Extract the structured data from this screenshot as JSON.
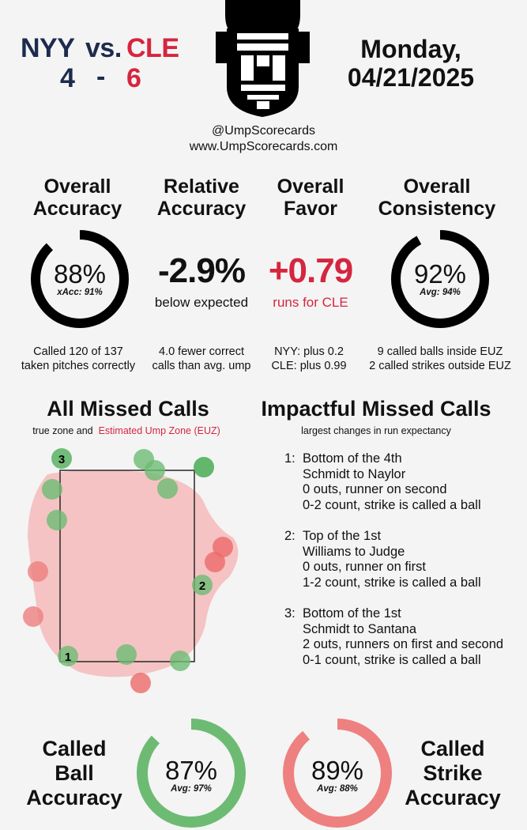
{
  "header": {
    "away_team": "NYY",
    "vs": "vs.",
    "home_team": "CLE",
    "away_score": "4",
    "dash": "-",
    "home_score": "6",
    "day": "Monday,",
    "date": "04/21/2025",
    "handle": "@UmpScorecards",
    "website": "www.UmpScorecards.com",
    "mask_icon": "umpire-mask-icon"
  },
  "metrics": [
    {
      "title_1": "Overall",
      "title_2": "Accuracy",
      "value": "88%",
      "sub": "xAcc: 91%",
      "foot_1": "Called 120 of 137",
      "foot_2": "taken pitches correctly",
      "fraction": 0.88
    },
    {
      "title_1": "Relative",
      "title_2": "Accuracy",
      "value": "-2.9%",
      "sub": "below expected",
      "foot_1": "4.0 fewer correct",
      "foot_2": "calls than avg. ump"
    },
    {
      "title_1": "Overall",
      "title_2": "Favor",
      "value": "+0.79",
      "sub": "runs for CLE",
      "foot_1": "NYY: plus 0.2",
      "foot_2": "CLE: plus 0.99"
    },
    {
      "title_1": "Overall",
      "title_2": "Consistency",
      "value": "92%",
      "sub": "Avg: 94%",
      "foot_1": "9 called balls inside EUZ",
      "foot_2": "2 called strikes outside EUZ",
      "fraction": 0.92
    }
  ],
  "missed": {
    "title": "All Missed Calls",
    "legend_1": "true zone and",
    "legend_2": "Estimated Ump Zone (EUZ)",
    "labels": [
      "1",
      "2",
      "3"
    ]
  },
  "impactful": {
    "title": "Impactful Missed Calls",
    "sub": "largest changes in run expectancy",
    "calls": [
      {
        "num": "1:",
        "lines": [
          "Bottom of the 4th",
          "Schmidt to Naylor",
          "0 outs, runner on second",
          "0-2 count, strike is called a ball"
        ]
      },
      {
        "num": "2:",
        "lines": [
          "Top of the 1st",
          "Williams to Judge",
          "0 outs, runner on first",
          "1-2 count, strike is called a ball"
        ]
      },
      {
        "num": "3:",
        "lines": [
          "Bottom of the 1st",
          "Schmidt to Santana",
          "2 outs, runners on first and second",
          "0-1 count, strike is called a ball"
        ]
      }
    ]
  },
  "bottom": {
    "ball_title": [
      "Called",
      "Ball",
      "Accuracy"
    ],
    "ball_value": "87%",
    "ball_avg": "Avg: 97%",
    "ball_fraction": 0.87,
    "strike_title": [
      "Called",
      "Strike",
      "Accuracy"
    ],
    "strike_value": "89%",
    "strike_avg": "Avg: 88%",
    "strike_fraction": 0.89
  },
  "colors": {
    "navy": "#1c2b4d",
    "red": "#d5263f",
    "green": "#3da84a",
    "light_green": "#6dbb73",
    "light_red": "#ee8080"
  }
}
